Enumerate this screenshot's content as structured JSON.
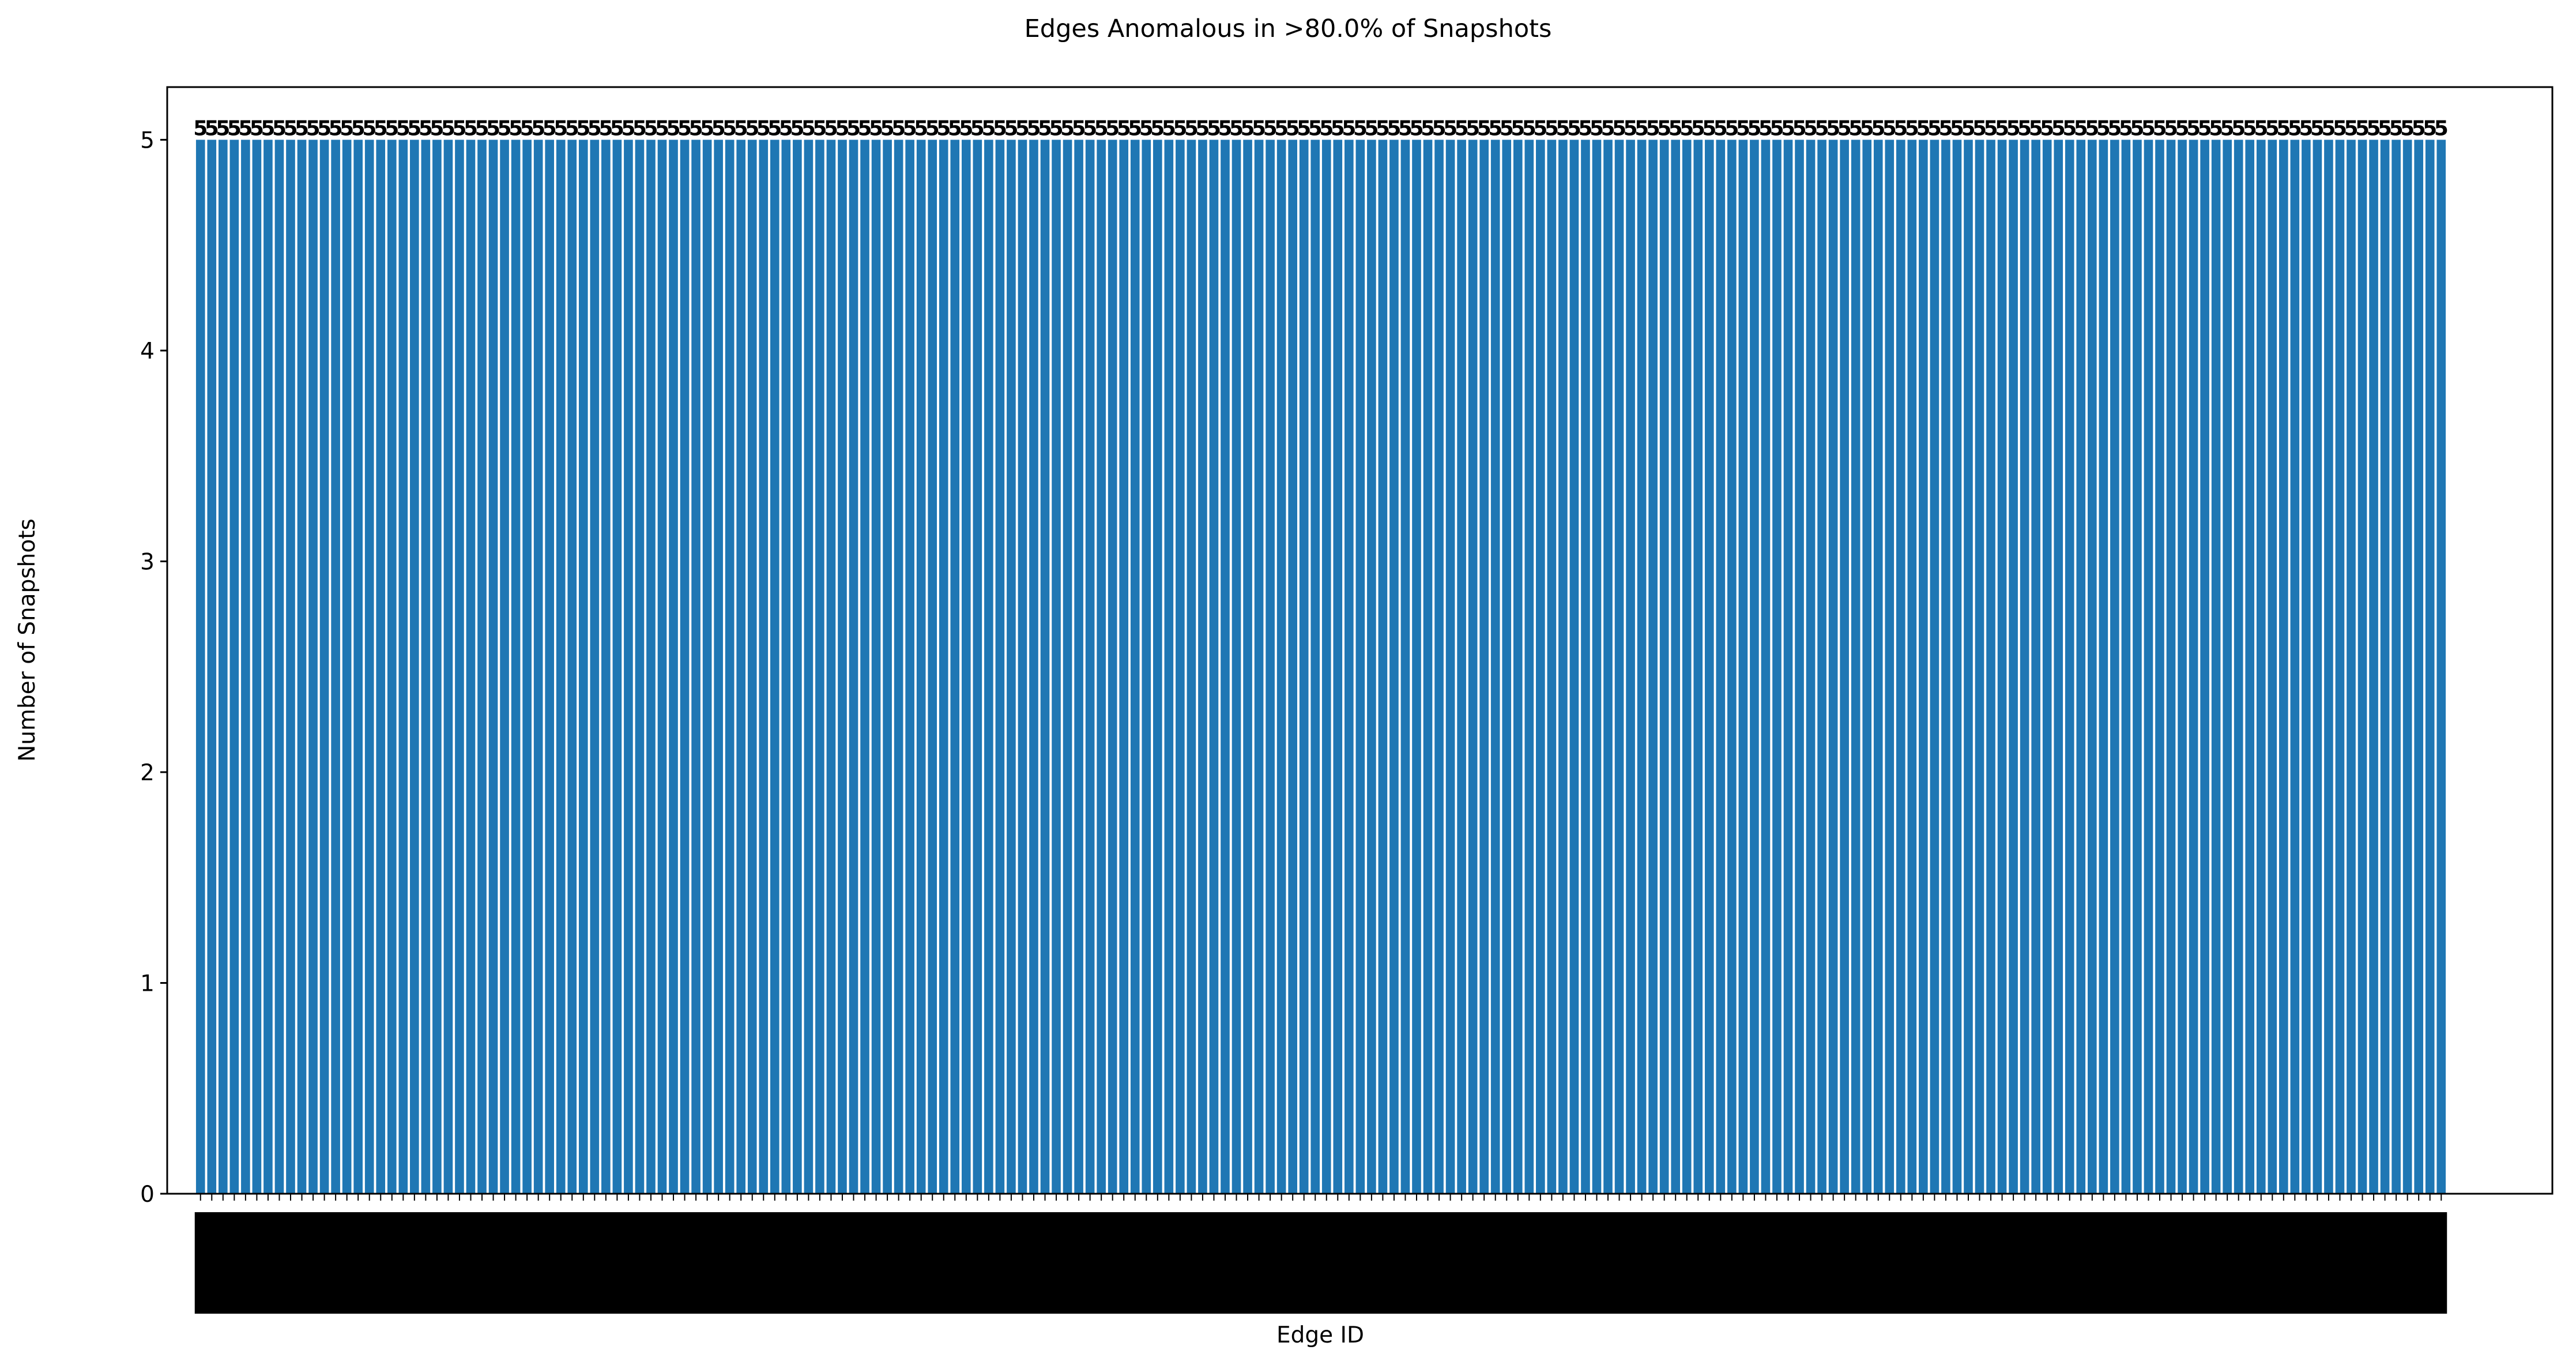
{
  "chart_data": {
    "type": "bar",
    "title": "Edges Anomalous in >80.0% of Snapshots",
    "xlabel": "Edge ID",
    "ylabel": "Number of Snapshots",
    "ylim": [
      0,
      5.25
    ],
    "yticks": [
      "0",
      "1",
      "2",
      "3",
      "4",
      "5"
    ],
    "bar_count": 200,
    "bar_value": 5,
    "value_label_text": "5",
    "colors": {
      "bar": "#1f77b4",
      "axes": "#000000",
      "background": "#ffffff"
    },
    "grid": false,
    "legend": "none"
  }
}
